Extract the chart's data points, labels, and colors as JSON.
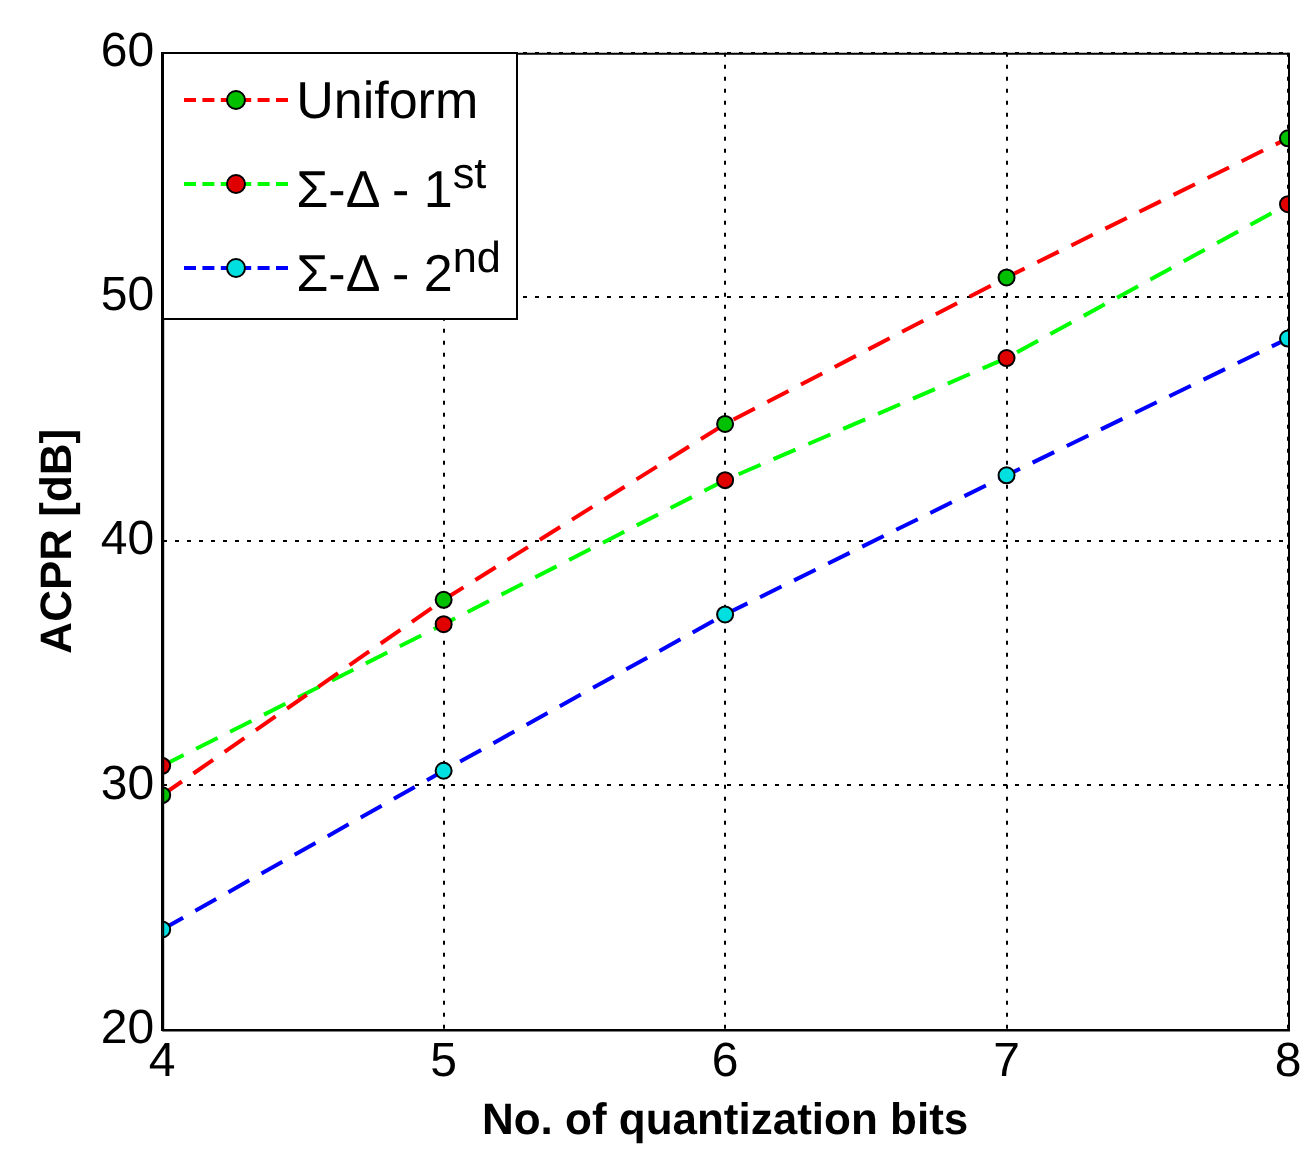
{
  "chart_data": {
    "type": "line",
    "xlabel": "No. of quantization bits",
    "ylabel": "ACPR [dB]",
    "x": [
      4,
      5,
      6,
      7,
      8
    ],
    "series": [
      {
        "name": "Uniform",
        "color": "#ff0000",
        "colors": [
          "#00c000",
          "#00c000",
          "#00c000",
          "#00c000",
          "#00c000"
        ],
        "values": [
          29.6,
          37.6,
          44.8,
          50.8,
          56.5
        ]
      },
      {
        "name": "Σ-Δ - 1$^{st}$",
        "color": "#00ff00",
        "colors": [
          "#e00000",
          "#e00000",
          "#e00000",
          "#e00000",
          "#e00000"
        ],
        "values": [
          30.8,
          36.6,
          42.5,
          47.5,
          53.8
        ]
      },
      {
        "name": "Σ-Δ - 2$^{nd}$",
        "color": "#0000ff",
        "colors": [
          "#00e0e0",
          "#00e0e0",
          "#00e0e0",
          "#00e0e0",
          "#00e0e0"
        ],
        "values": [
          24.1,
          30.6,
          37.0,
          42.7,
          48.3
        ]
      }
    ],
    "xlim": [
      4,
      8
    ],
    "xticks": [
      4,
      5,
      6,
      7,
      8
    ],
    "ylim": [
      20,
      60
    ],
    "yticks": [
      20,
      30,
      40,
      50,
      60
    ],
    "grid": true,
    "legend": "top left",
    "marker": "circle",
    "line_style": "dashed"
  }
}
